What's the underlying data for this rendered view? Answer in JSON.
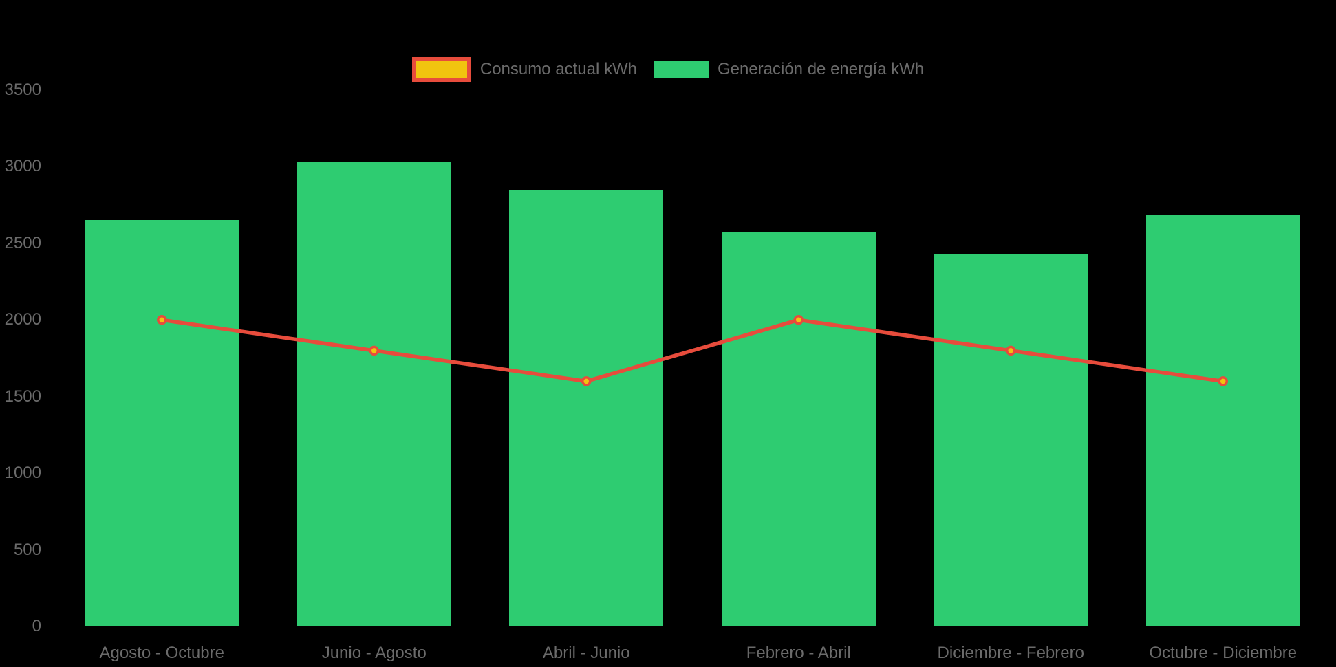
{
  "chart_data": {
    "type": "bar",
    "subtype": "bar-with-line-overlay",
    "categories": [
      "Agosto - Octubre",
      "Junio - Agosto",
      "Abril - Junio",
      "Febrero - Abril",
      "Diciembre - Febrero",
      "Octubre - Diciembre"
    ],
    "series": [
      {
        "name": "Consumo actual kWh",
        "type": "line",
        "values": [
          2000,
          1800,
          1600,
          2000,
          1800,
          1600
        ],
        "line_color": "#e74c3c",
        "point_fill": "#f1c40f",
        "point_border": "#e74c3c"
      },
      {
        "name": "Generación de energía kWh",
        "type": "bar",
        "values": [
          2650,
          3030,
          2850,
          2570,
          2430,
          2690
        ],
        "color": "#2ecc71"
      }
    ],
    "title": "",
    "xlabel": "",
    "ylabel": "",
    "ylim": [
      0,
      3500
    ],
    "y_ticks": [
      0,
      500,
      1000,
      1500,
      2000,
      2500,
      3000,
      3500
    ],
    "grid": "off",
    "legend_position": "top-center",
    "background": "#000000",
    "label_color": "#6b6b6b"
  }
}
